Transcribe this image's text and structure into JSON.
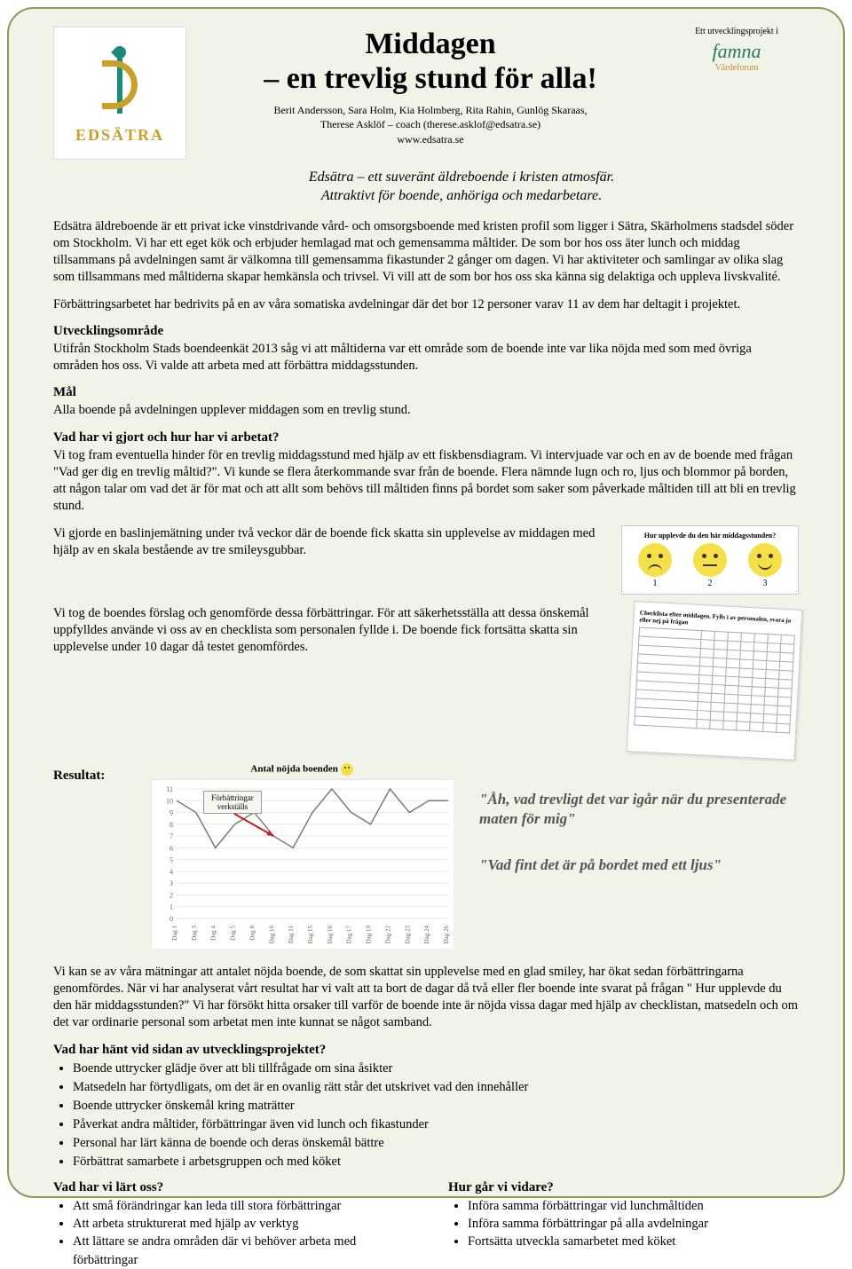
{
  "logo": {
    "name": "EDSÄTRA"
  },
  "title_line1": "Middagen",
  "title_line2": "– en trevlig stund för alla!",
  "authors_line1": "Berit Andersson, Sara Holm, Kia Holmberg, Rita Rahin, Gunlög Skaraas,",
  "authors_line2": "Therese Asklöf – coach (therese.asklof@edsatra.se)",
  "website": "www.edsatra.se",
  "sponsor": {
    "label": "Ett utvecklingsprojekt i",
    "brand": "famna",
    "sub": "Värdeforum"
  },
  "tagline_line1": "Edsätra – ett suveränt äldreboende i kristen atmosfär.",
  "tagline_line2": "Attraktivt för boende, anhöriga och medarbetare.",
  "intro_p1": "Edsätra äldreboende är ett privat icke vinstdrivande vård- och omsorgsboende med kristen profil som ligger i Sätra, Skärholmens stadsdel söder om Stockholm. Vi har ett eget kök och erbjuder hemlagad mat och gemensamma måltider. De som bor hos oss äter lunch och middag tillsammans på avdelningen samt är välkomna till gemensamma fikastunder 2 gånger om dagen.  Vi har aktiviteter och samlingar av olika slag som tillsammans med måltiderna skapar hemkänsla och trivsel. Vi vill att de som bor hos oss ska känna  sig delaktiga och uppleva livskvalité.",
  "intro_p2": "Förbättringsarbetet har bedrivits  på en av våra somatiska avdelningar där det bor 12 personer varav 11 av dem har deltagit i projektet.",
  "sec_utv": "Utvecklingsområde",
  "utv_p": "Utifrån Stockholm Stads boendeenkät 2013 såg vi att måltiderna var ett område som de boende inte var lika nöjda med som med övriga områden hos oss. Vi valde att arbeta med att förbättra middagsstunden.",
  "sec_mal": "Mål",
  "mal_p": "Alla boende på avdelningen upplever middagen som en trevlig stund.",
  "sec_vad": "Vad har vi gjort och hur har vi arbetat?",
  "vad_p1": "Vi tog fram eventuella hinder för en trevlig middagsstund med hjälp av ett fiskbensdiagram. Vi intervjuade var och en av de boende med frågan \"Vad ger dig en trevlig måltid?\". Vi kunde se flera återkommande svar från de boende. Flera nämnde lugn och ro, ljus och blommor på borden, att någon talar om vad det är för mat och att allt som behövs till måltiden finns på bordet som saker som påverkade måltiden till att bli en trevlig stund.",
  "smiley_card_title": "Hur upplevde du den här middagsstunden?",
  "smiley_labels": [
    "1",
    "2",
    "3"
  ],
  "baseline_p": "Vi gjorde en baslinjemätning  under två veckor där de boende fick skatta sin upplevelse av middagen med hjälp av en skala bestående av tre smileysgubbar.",
  "checklist_title": "Checklista efter middagen. Fylls i av personalen, svara ja eller nej på frågan",
  "checklist_p": "Vi tog de boendes förslag och genomförde dessa förbättringar. För att säkerhetsställa att dessa önskemål uppfylldes använde vi oss av en checklista som personalen fyllde i. De boende fick fortsätta skatta sin upplevelse under 10 dagar då testet genomfördes.",
  "results_label": "Resultat:",
  "chart": {
    "title": "Antal nöjda boenden",
    "callout": "Förbättringar verkställs",
    "ylim": [
      0,
      11
    ],
    "yticks": [
      0,
      1,
      2,
      3,
      4,
      5,
      6,
      7,
      8,
      9,
      10,
      11
    ],
    "xlabels": [
      "Dag 1",
      "Dag 3",
      "Dag 4",
      "Dag 5",
      "Dag 8",
      "Dag 10",
      "Dag 11",
      "Dag 15",
      "Dag 16",
      "Dag 17",
      "Dag 19",
      "Dag 22",
      "Dag 23",
      "Dag 24",
      "Dag 26"
    ],
    "values": [
      10,
      9,
      6,
      8,
      9,
      7,
      6,
      9,
      11,
      9,
      8,
      11,
      9,
      10,
      10
    ],
    "line_color": "#7a7a7a",
    "grid_color": "#e8e8e8",
    "arrow_color": "#c02020",
    "arrow_from_idx": 5,
    "background": "#ffffff"
  },
  "quote1": "\"Åh, vad trevligt det var igår när du presenterade maten för mig\"",
  "quote2": "\"Vad fint det är på bordet med ett ljus\"",
  "analysis_p": "Vi kan se av våra mätningar att antalet nöjda boende, de som skattat sin upplevelse med en glad smiley, har ökat sedan förbättringarna genomfördes. När vi har analyserat vårt resultat har vi valt att ta bort de dagar då två eller fler boende inte svarat på frågan \" Hur upplevde du den här middagsstunden?\" Vi har försökt hitta orsaker till varför de boende inte är nöjda vissa dagar med hjälp av checklistan, matsedeln och om det var ordinarie personal som arbetat men inte kunnat se något samband.",
  "sec_hant": "Vad har hänt vid sidan av utvecklingsprojektet?",
  "hant_bullets": [
    "Boende uttrycker glädje över att bli tillfrågade om sina åsikter",
    "Matsedeln har förtydligats, om det är en ovanlig rätt står det utskrivet vad den innehåller",
    "Boende uttrycker önskemål kring maträtter",
    "Påverkat andra måltider, förbättringar även vid lunch och fikastunder",
    " Personal har lärt känna de boende och deras önskemål bättre",
    "Förbättrat samarbete i arbetsgruppen och med köket"
  ],
  "sec_lart": "Vad har vi lärt oss?",
  "lart_bullets": [
    "Att små förändringar kan leda till stora förbättringar",
    "Att arbeta strukturerat med hjälp av verktyg",
    "Att lättare se andra områden där vi behöver arbeta med förbättringar"
  ],
  "sec_vidare": "Hur går vi vidare?",
  "vidare_bullets": [
    "Införa samma förbättringar vid lunchmåltiden",
    "Införa samma förbättringar på alla avdelningar",
    "Fortsätta utveckla samarbetet med köket"
  ]
}
